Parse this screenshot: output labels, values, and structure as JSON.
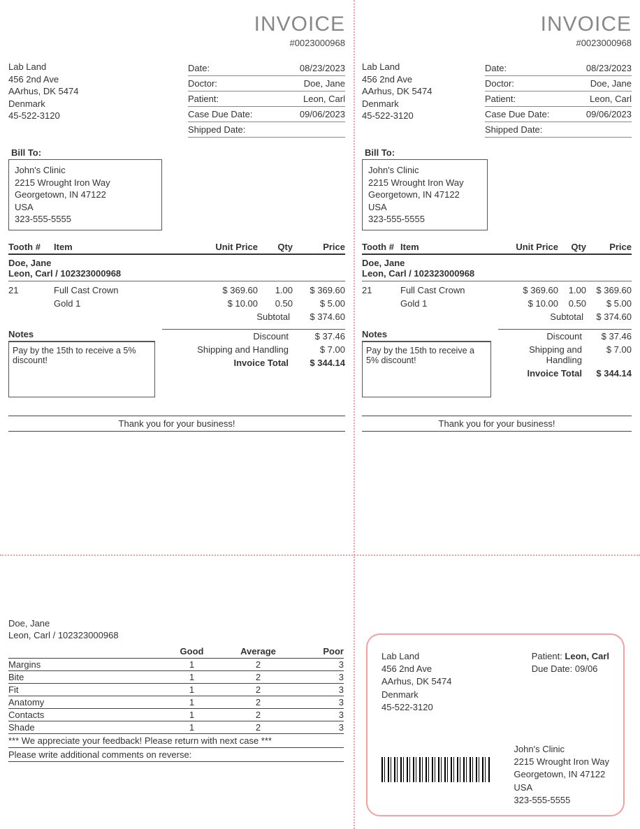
{
  "invoice": {
    "title": "INVOICE",
    "number": "#0023000968",
    "lab": {
      "name": "Lab Land",
      "street": "456 2nd Ave",
      "city": "AArhus, DK 5474",
      "country": "Denmark",
      "phone": "45-522-3120"
    },
    "meta": {
      "date_label": "Date:",
      "date": "08/23/2023",
      "doctor_label": "Doctor:",
      "doctor": "Doe, Jane",
      "patient_label": "Patient:",
      "patient": "Leon, Carl",
      "due_label": "Case Due Date:",
      "due": "09/06/2023",
      "shipped_label": "Shipped Date:",
      "shipped": ""
    },
    "billto_label": "Bill To:",
    "billto": {
      "name": "John's Clinic",
      "street": "2215 Wrought Iron Way",
      "city": "Georgetown, IN 47122",
      "country": "USA",
      "phone": "323-555-5555"
    },
    "cols": {
      "tooth": "Tooth #",
      "item": "Item",
      "unit_price": "Unit Price",
      "qty": "Qty",
      "price": "Price"
    },
    "doctor_line": "Doe, Jane",
    "patient_line": "Leon, Carl / 102323000968",
    "items": [
      {
        "tooth": "21",
        "name": "Full Cast Crown",
        "unit_price": "$ 369.60",
        "qty": "1.00",
        "price": "$ 369.60"
      },
      {
        "tooth": "",
        "name": "Gold 1",
        "unit_price": "$ 10.00",
        "qty": "0.50",
        "price": "$ 5.00"
      }
    ],
    "subtotal_label": "Subtotal",
    "subtotal": "$ 374.60",
    "notes_label": "Notes",
    "notes_text_left": "Pay by the 15th to receive a 5% discount!",
    "notes_text_right": "Pay by the 15th to receive a 5% discount!",
    "totals": {
      "discount_label": "Discount",
      "discount": "$ 37.46",
      "shipping_label": "Shipping and Handling",
      "shipping": "$ 7.00",
      "total_label": "Invoice Total",
      "total": "$ 344.14"
    },
    "thanks": "Thank you for your business!"
  },
  "feedback": {
    "doctor": "Doe, Jane",
    "patient": "Leon, Carl / 102323000968",
    "cols": {
      "good": "Good",
      "average": "Average",
      "poor": "Poor"
    },
    "rows": [
      {
        "label": "Margins",
        "g": "1",
        "a": "2",
        "p": "3"
      },
      {
        "label": "Bite",
        "g": "1",
        "a": "2",
        "p": "3"
      },
      {
        "label": "Fit",
        "g": "1",
        "a": "2",
        "p": "3"
      },
      {
        "label": "Anatomy",
        "g": "1",
        "a": "2",
        "p": "3"
      },
      {
        "label": "Contacts",
        "g": "1",
        "a": "2",
        "p": "3"
      },
      {
        "label": "Shade",
        "g": "1",
        "a": "2",
        "p": "3"
      }
    ],
    "msg1": "*** We appreciate your feedback! Please return with next case ***",
    "msg2": "Please write additional comments on reverse:"
  },
  "ship": {
    "lab": {
      "name": "Lab Land",
      "street": "456 2nd Ave",
      "city": "AArhus, DK 5474",
      "country": "Denmark",
      "phone": "45-522-3120"
    },
    "patient_label": "Patient: ",
    "patient": "Leon, Carl",
    "due_label": "Due Date: ",
    "due": "09/06",
    "clinic": {
      "name": "John's Clinic",
      "street": "2215 Wrought Iron Way",
      "city": "Georgetown, IN 47122",
      "country": "USA",
      "phone": "323-555-5555"
    }
  }
}
